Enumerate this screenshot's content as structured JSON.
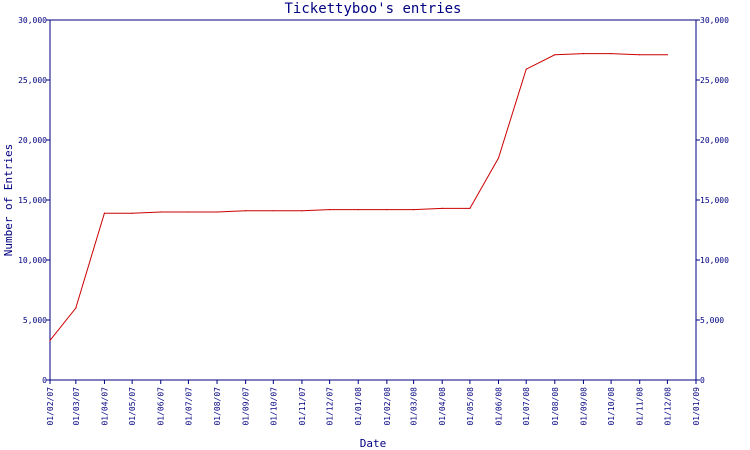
{
  "chart_data": {
    "type": "line",
    "title": "Tickettyboo's entries",
    "xlabel": "Date",
    "ylabel": "Number of Entries",
    "x_tick_labels": [
      "01/02/07",
      "01/03/07",
      "01/04/07",
      "01/05/07",
      "01/06/07",
      "01/07/07",
      "01/08/07",
      "01/09/07",
      "01/10/07",
      "01/11/07",
      "01/12/07",
      "01/01/08",
      "01/02/08",
      "01/03/08",
      "01/04/08",
      "01/05/08",
      "01/06/08",
      "01/07/08",
      "01/08/08",
      "01/09/08",
      "01/10/08",
      "01/11/08",
      "01/12/08",
      "01/01/09"
    ],
    "y_tick_labels": [
      "0",
      "5,000",
      "10,000",
      "15,000",
      "20,000",
      "25,000",
      "30,000"
    ],
    "y_ticks": [
      0,
      5000,
      10000,
      15000,
      20000,
      25000,
      30000
    ],
    "ylim": [
      0,
      30000
    ],
    "xlim": [
      "2007-02-01",
      "2009-01-01"
    ],
    "series": [
      {
        "color": "#cc0000",
        "points": [
          {
            "x": "2007-02-01",
            "y": 3300
          },
          {
            "x": "2007-03-01",
            "y": 6000
          },
          {
            "x": "2007-04-01",
            "y": 13900
          },
          {
            "x": "2007-05-01",
            "y": 13900
          },
          {
            "x": "2007-06-01",
            "y": 14000
          },
          {
            "x": "2007-07-01",
            "y": 14000
          },
          {
            "x": "2007-08-01",
            "y": 14000
          },
          {
            "x": "2007-09-01",
            "y": 14100
          },
          {
            "x": "2007-10-01",
            "y": 14100
          },
          {
            "x": "2007-11-01",
            "y": 14100
          },
          {
            "x": "2007-12-01",
            "y": 14200
          },
          {
            "x": "2008-01-01",
            "y": 14200
          },
          {
            "x": "2008-02-01",
            "y": 14200
          },
          {
            "x": "2008-03-01",
            "y": 14200
          },
          {
            "x": "2008-04-01",
            "y": 14300
          },
          {
            "x": "2008-05-01",
            "y": 14300
          },
          {
            "x": "2008-06-01",
            "y": 18500
          },
          {
            "x": "2008-07-01",
            "y": 25900
          },
          {
            "x": "2008-08-01",
            "y": 27100
          },
          {
            "x": "2008-09-01",
            "y": 27200
          },
          {
            "x": "2008-10-01",
            "y": 27200
          },
          {
            "x": "2008-11-01",
            "y": 27100
          },
          {
            "x": "2008-12-01",
            "y": 27100
          }
        ]
      }
    ],
    "axis_color": "#000080",
    "grid": false
  }
}
